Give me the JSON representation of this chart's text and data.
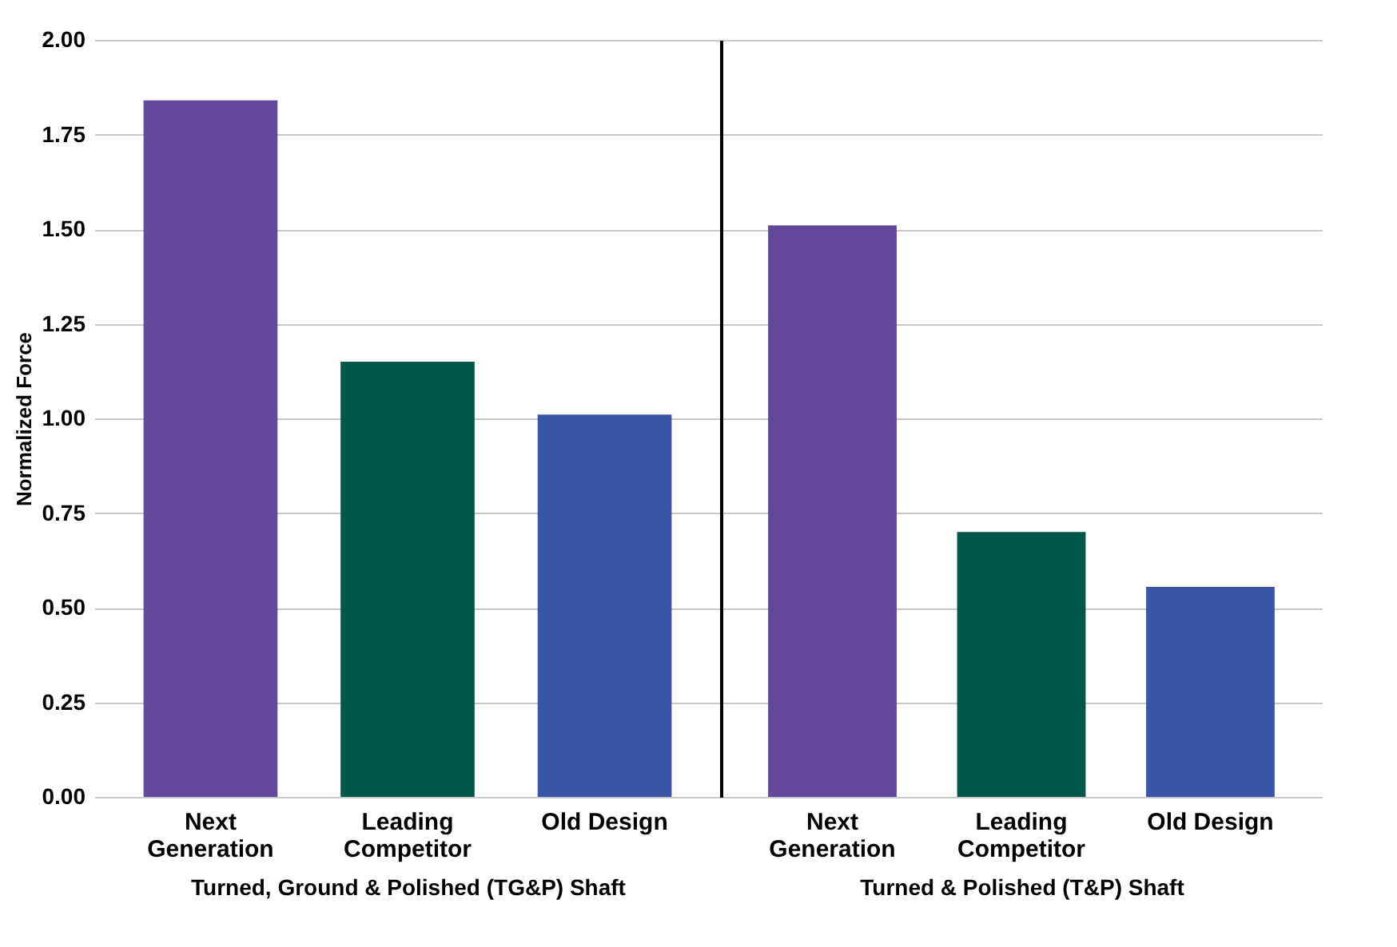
{
  "chart_data": [
    {
      "type": "bar",
      "categories": [
        "Next Generation",
        "Leading Competitor",
        "Old Design"
      ],
      "values": [
        1.84,
        1.15,
        1.01
      ],
      "colors": [
        "#62479a",
        "#02564a",
        "#3a55a6"
      ],
      "xlabel": "Turned, Ground & Polished (TG&P) Shaft",
      "ylabel": "Normalized Force",
      "ylim": [
        0,
        2
      ],
      "yticks": [
        {
          "value": 0,
          "label": "0.00"
        },
        {
          "value": 0.25,
          "label": "0.25"
        },
        {
          "value": 0.5,
          "label": "0.50"
        },
        {
          "value": 0.75,
          "label": "0.75"
        },
        {
          "value": 1,
          "label": "1.00"
        },
        {
          "value": 1.25,
          "label": "1.25"
        },
        {
          "value": 1.5,
          "label": "1.50"
        },
        {
          "value": 1.75,
          "label": "1.75"
        },
        {
          "value": 2,
          "label": "2.00"
        }
      ],
      "grid": "y"
    },
    {
      "type": "bar",
      "categories": [
        "Next Generation",
        "Leading Competitor",
        "Old Design"
      ],
      "values": [
        1.51,
        0.7,
        0.555
      ],
      "colors": [
        "#62479a",
        "#02564a",
        "#3a55a6"
      ],
      "xlabel": "Turned & Polished (T&P) Shaft",
      "ylim": [
        0,
        2
      ],
      "grid": "y",
      "tick_labels": "x"
    }
  ]
}
